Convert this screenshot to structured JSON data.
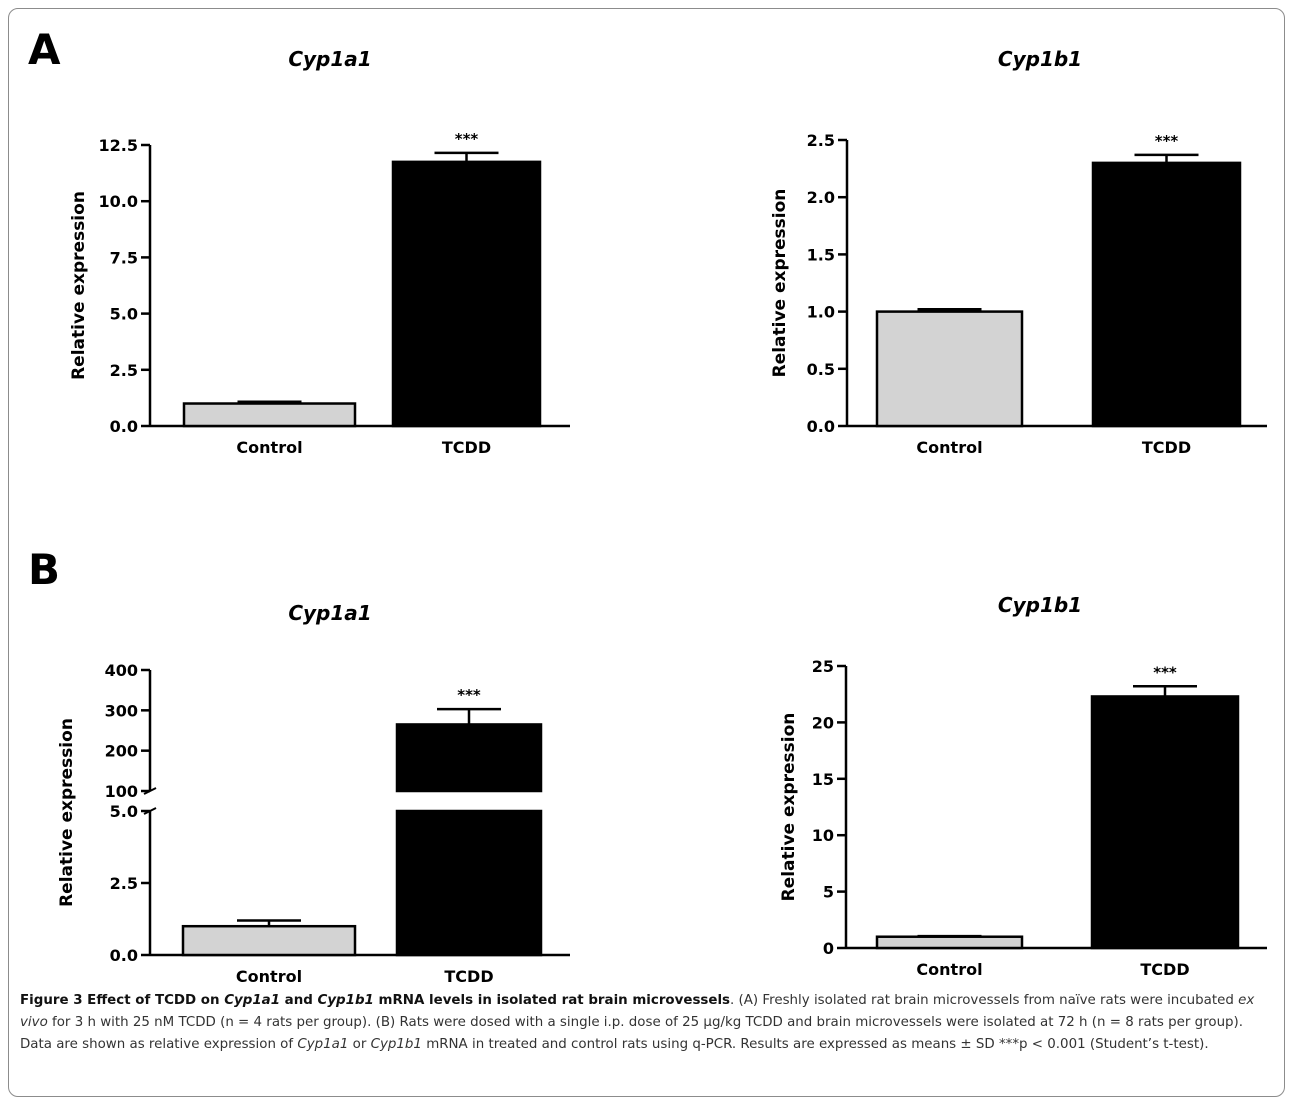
{
  "panels": [
    {
      "letter": "A"
    },
    {
      "letter": "B"
    }
  ],
  "chart_data": [
    {
      "panel": "A",
      "type": "bar",
      "title": "Cyp1a1",
      "ylabel": "Relative expression",
      "categories": [
        "Control",
        "TCDD"
      ],
      "values": [
        1.0,
        11.75
      ],
      "error": [
        0.08,
        0.4
      ],
      "significance": [
        "",
        "***"
      ],
      "ylim": [
        0,
        12.5
      ],
      "yticks": [
        "0.0",
        "2.5",
        "5.0",
        "7.5",
        "10.0",
        "12.5"
      ],
      "colors": [
        "#d3d3d3",
        "#000000"
      ]
    },
    {
      "panel": "A",
      "type": "bar",
      "title": "Cyp1b1",
      "ylabel": "Relative expression",
      "categories": [
        "Control",
        "TCDD"
      ],
      "values": [
        1.0,
        2.3
      ],
      "error": [
        0.02,
        0.07
      ],
      "significance": [
        "",
        "***"
      ],
      "ylim": [
        0,
        2.5
      ],
      "yticks": [
        "0.0",
        "0.5",
        "1.0",
        "1.5",
        "2.0",
        "2.5"
      ],
      "colors": [
        "#d3d3d3",
        "#000000"
      ]
    },
    {
      "panel": "B",
      "type": "bar",
      "title": "Cyp1a1",
      "ylabel": "Relative expression",
      "categories": [
        "Control",
        "TCDD"
      ],
      "values": [
        1.0,
        265
      ],
      "error": [
        0.2,
        38
      ],
      "significance": [
        "",
        "***"
      ],
      "axis_break": {
        "lower_range": [
          0,
          5
        ],
        "upper_range": [
          100,
          400
        ]
      },
      "yticks_lower": [
        "0.0",
        "2.5",
        "5.0"
      ],
      "yticks_upper": [
        "100",
        "200",
        "300",
        "400"
      ],
      "colors": [
        "#d3d3d3",
        "#000000"
      ]
    },
    {
      "panel": "B",
      "type": "bar",
      "title": "Cyp1b1",
      "ylabel": "Relative expression",
      "categories": [
        "Control",
        "TCDD"
      ],
      "values": [
        1.0,
        22.3
      ],
      "error": [
        0.05,
        0.9
      ],
      "significance": [
        "",
        "***"
      ],
      "ylim": [
        0,
        25
      ],
      "yticks": [
        "0",
        "5",
        "10",
        "15",
        "20",
        "25"
      ],
      "colors": [
        "#d3d3d3",
        "#000000"
      ]
    }
  ],
  "caption": {
    "label": "Figure 3 Effect of TCDD on ",
    "gene1": "Cyp1a1",
    "and": " and ",
    "gene2": "Cyp1b1",
    "label_end": " mRNA levels in isolated rat brain microvessels",
    "body_1": ". (A) Freshly isolated rat brain microvessels from naïve rats were incubated ",
    "ex_vivo": "ex vivo",
    "body_2": " for 3 h with 25 nM TCDD (n = 4 rats per group). (B) Rats were dosed with a single i.p. dose of 25 µg/kg TCDD and brain microvessels were isolated at 72 h (n = 8 rats per group). Data are shown as relative expression of ",
    "gene3": "Cyp1a1",
    "or": " or ",
    "gene4": "Cyp1b1",
    "body_3": " mRNA in treated and control rats using q-PCR. Results are expressed as means ± SD ***p < 0.001 (Student’s t-test)."
  }
}
